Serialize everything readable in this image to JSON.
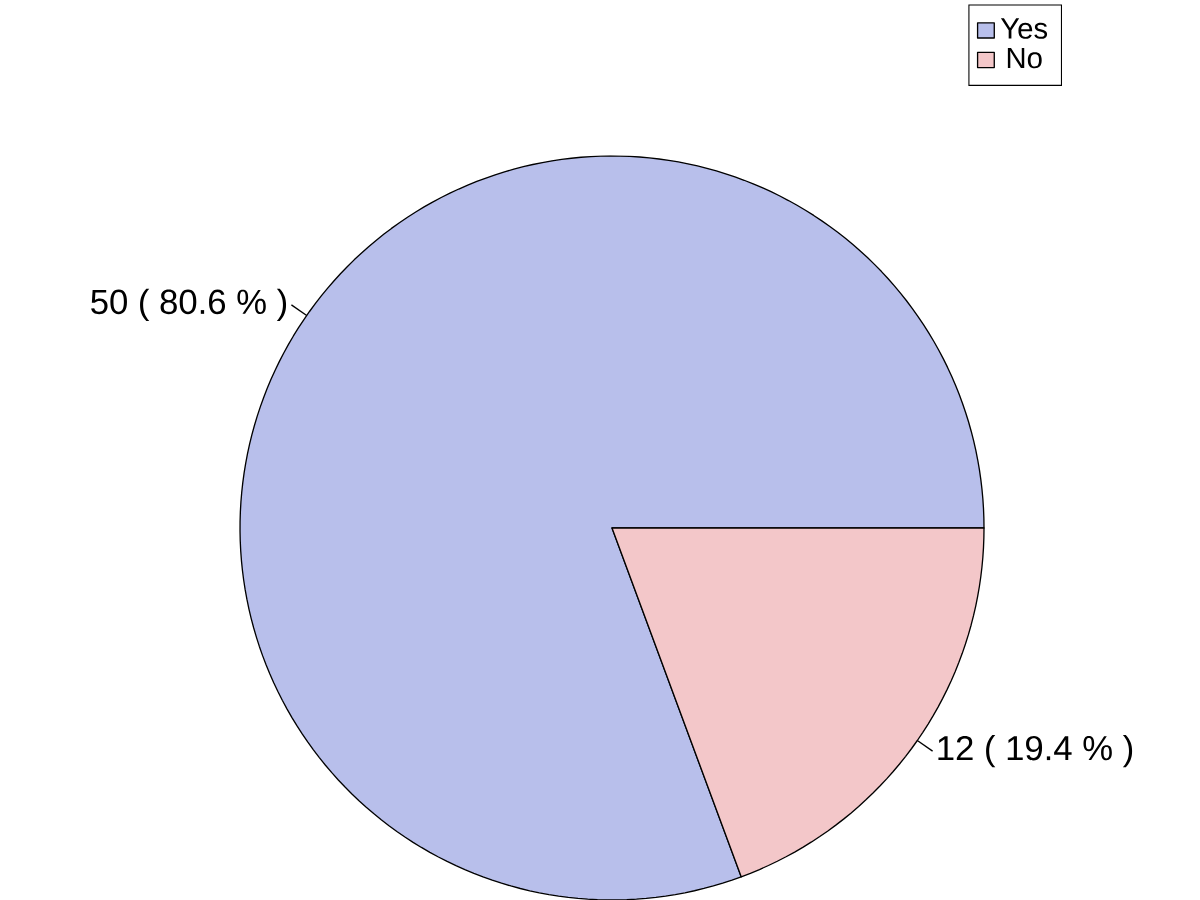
{
  "chart_data": {
    "type": "pie",
    "categories": [
      "Yes",
      "No"
    ],
    "values": [
      50,
      12
    ],
    "colors": [
      "#b8bfeb",
      "#f3c7c9"
    ],
    "value_labels": [
      "50 ( 80.6 % )",
      "12 ( 19.4 % )"
    ],
    "legend": "top right"
  }
}
